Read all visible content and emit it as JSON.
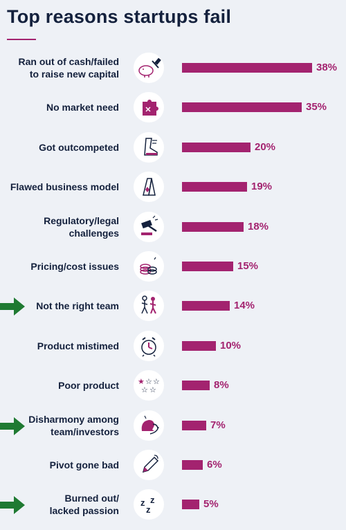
{
  "title": "Top reasons startups fail",
  "colors": {
    "bar": "#a3236f",
    "title": "#14213d",
    "arrow": "#1f7a32",
    "background": "#eef1f6"
  },
  "chart_data": {
    "type": "bar",
    "orientation": "horizontal",
    "title": "Top reasons startups fail",
    "unit": "%",
    "xlim": [
      0,
      38
    ],
    "grid": false,
    "categories": [
      "Ran out of cash/failed to raise new capital",
      "No market need",
      "Got outcompeted",
      "Flawed business model",
      "Regulatory/legal challenges",
      "Pricing/cost issues",
      "Not the right team",
      "Product mistimed",
      "Poor product",
      "Disharmony among team/investors",
      "Pivot gone bad",
      "Burned out/ lacked passion"
    ],
    "values": [
      38,
      35,
      20,
      19,
      18,
      15,
      14,
      10,
      8,
      7,
      6,
      5
    ],
    "value_labels": [
      "38%",
      "35%",
      "20%",
      "19%",
      "18%",
      "15%",
      "14%",
      "10%",
      "8%",
      "7%",
      "6%",
      "5%"
    ]
  },
  "rows": [
    {
      "lines": [
        "Ran out of cash/failed",
        "to raise new capital"
      ],
      "icon": "piggy-bank-hammer-icon",
      "arrow": false
    },
    {
      "lines": [
        "No market need"
      ],
      "icon": "puzzle-piece-icon",
      "arrow": false
    },
    {
      "lines": [
        "Got outcompeted"
      ],
      "icon": "running-shoe-icon",
      "arrow": false
    },
    {
      "lines": [
        "Flawed business model"
      ],
      "icon": "card-house-icon",
      "arrow": false
    },
    {
      "lines": [
        "Regulatory/legal",
        "challenges"
      ],
      "icon": "gavel-icon",
      "arrow": false
    },
    {
      "lines": [
        "Pricing/cost issues"
      ],
      "icon": "coin-stack-icon",
      "arrow": false
    },
    {
      "lines": [
        "Not the right team"
      ],
      "icon": "walking-people-icon",
      "arrow": true
    },
    {
      "lines": [
        "Product mistimed"
      ],
      "icon": "alarm-clock-icon",
      "arrow": false
    },
    {
      "lines": [
        "Poor product"
      ],
      "icon": "stars-rating-icon",
      "arrow": false
    },
    {
      "lines": [
        "Disharmony among",
        "team/investors"
      ],
      "icon": "arguing-faces-icon",
      "arrow": true
    },
    {
      "lines": [
        "Pivot gone bad"
      ],
      "icon": "pencil-icon",
      "arrow": false
    },
    {
      "lines": [
        "Burned out/",
        "lacked passion"
      ],
      "icon": "sleeping-zzz-icon",
      "arrow": true
    }
  ]
}
